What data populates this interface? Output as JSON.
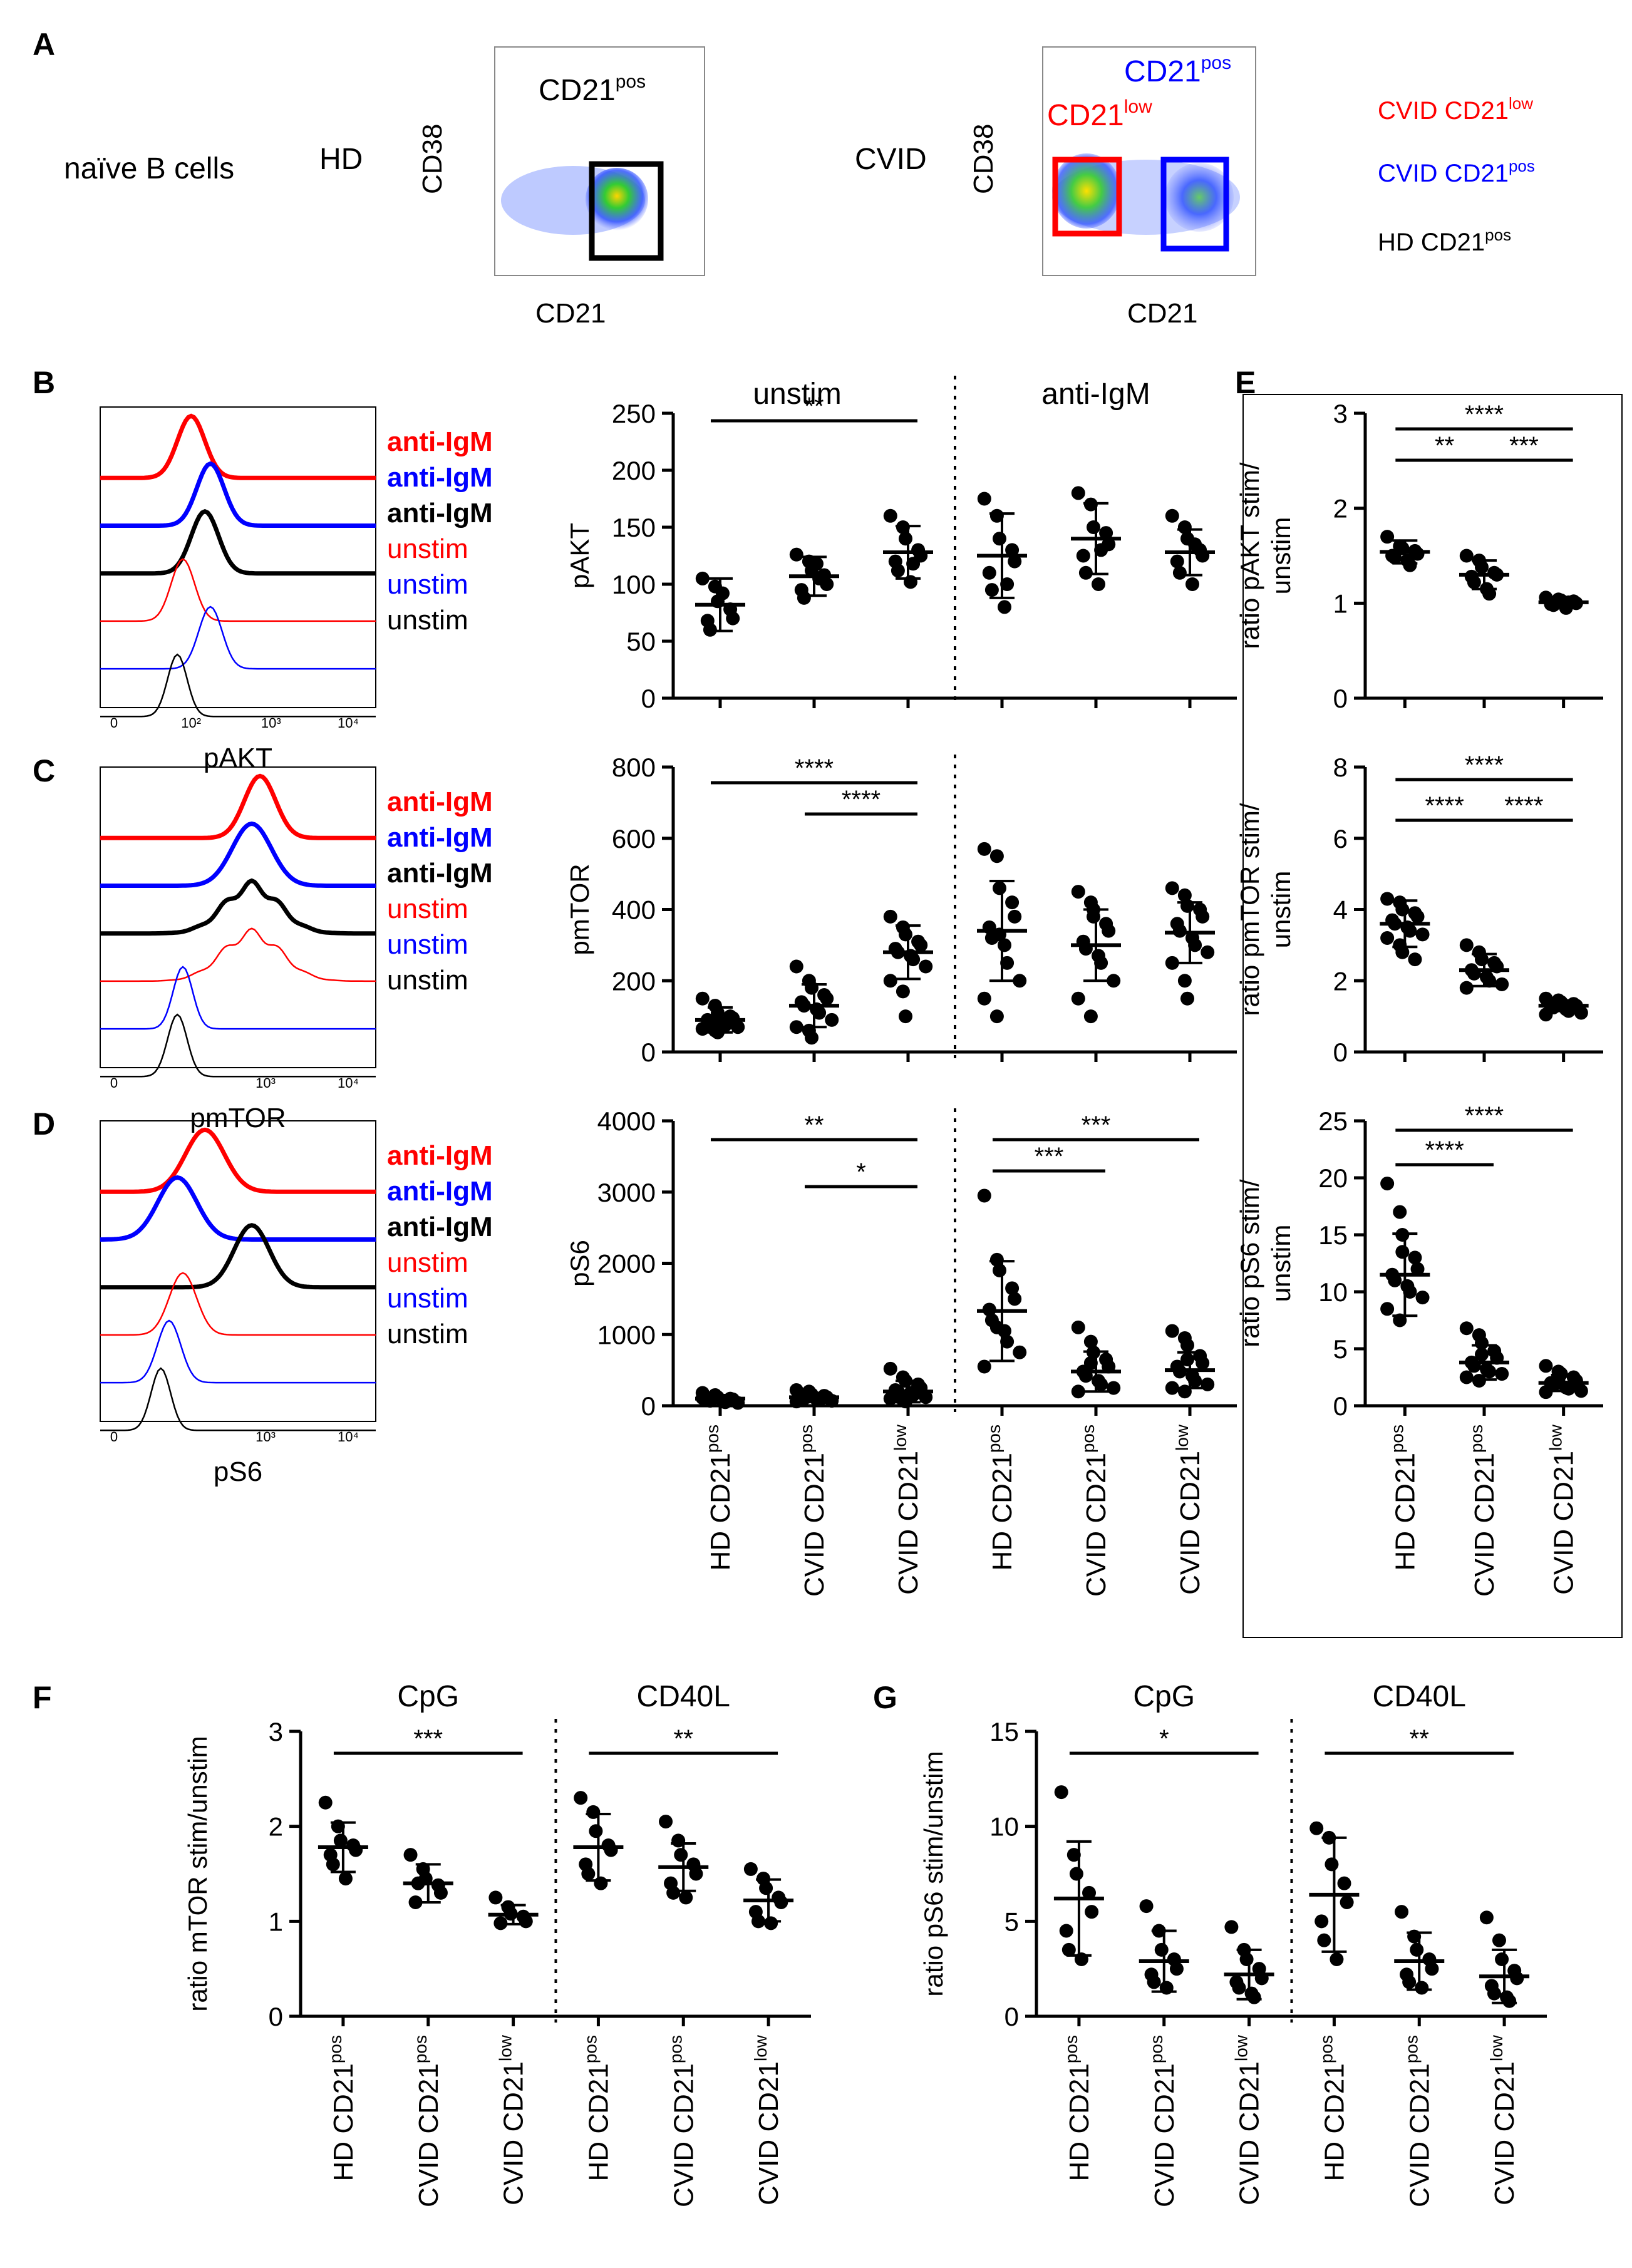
{
  "colors": {
    "red": "#ff0000",
    "blue": "#0000ff",
    "black": "#000000"
  },
  "panel_letters": [
    "A",
    "B",
    "C",
    "D",
    "E",
    "F",
    "G"
  ],
  "panel_a": {
    "row_label": "naïve B cells",
    "hd_label": "HD",
    "cvid_label": "CVID",
    "hd_gate": "CD21",
    "hd_gate_sup": "pos",
    "cvid_gate_low": "CD21",
    "cvid_gate_low_sup": "low",
    "cvid_gate_pos": "CD21",
    "cvid_gate_pos_sup": "pos",
    "x_axis": "CD21",
    "y_axis": "CD38",
    "legend": [
      {
        "base": "CVID CD21",
        "sup": "low",
        "color": "red"
      },
      {
        "base": "CVID CD21",
        "sup": "pos",
        "color": "blue"
      },
      {
        "base": "HD CD21",
        "sup": "pos",
        "color": "black"
      }
    ]
  },
  "histogram_labels": [
    {
      "text": "anti-IgM",
      "color": "red",
      "bold": true
    },
    {
      "text": "anti-IgM",
      "color": "blue",
      "bold": true
    },
    {
      "text": "anti-IgM",
      "color": "black",
      "bold": true
    },
    {
      "text": "unstim",
      "color": "red",
      "bold": false
    },
    {
      "text": "unstim",
      "color": "blue",
      "bold": false
    },
    {
      "text": "unstim",
      "color": "black",
      "bold": false
    }
  ],
  "histograms": [
    {
      "panel": "B",
      "xlabel": "pAKT",
      "ticks": [
        "0",
        "10²",
        "10³",
        "10⁴"
      ]
    },
    {
      "panel": "C",
      "xlabel": "pmTOR",
      "ticks": [
        "0",
        "10³",
        "10⁴"
      ]
    },
    {
      "panel": "D",
      "xlabel": "pS6",
      "ticks": [
        "0",
        "10³",
        "10⁴"
      ]
    }
  ],
  "group_headers": {
    "left": "unstim",
    "right": "anti-IgM"
  },
  "category_labels": [
    {
      "base": "HD CD21",
      "sup": "pos"
    },
    {
      "base": "CVID CD21",
      "sup": "pos"
    },
    {
      "base": "CVID CD21",
      "sup": "low"
    }
  ],
  "stim_labels": {
    "cpg": "CpG",
    "cd40l": "CD40L"
  },
  "chart_data": [
    {
      "panel": "B",
      "type": "scatter",
      "ylabel": "pAKT",
      "ylim": [
        0,
        250
      ],
      "yticks": [
        0,
        50,
        100,
        150,
        200,
        250
      ],
      "categories": [
        "HD CD21pos unstim",
        "CVID CD21pos unstim",
        "CVID CD21low unstim",
        "HD CD21pos anti-IgM",
        "CVID CD21pos anti-IgM",
        "CVID CD21low anti-IgM"
      ],
      "series": [
        {
          "name": "HD CD21pos unstim",
          "mean": 82,
          "sd": 23,
          "points": [
            105,
            98,
            85,
            78,
            70,
            68,
            60,
            92
          ]
        },
        {
          "name": "CVID CD21pos unstim",
          "mean": 107,
          "sd": 17,
          "points": [
            126,
            120,
            112,
            108,
            100,
            95,
            88,
            118,
            105
          ]
        },
        {
          "name": "CVID CD21low unstim",
          "mean": 128,
          "sd": 23,
          "points": [
            160,
            150,
            140,
            130,
            125,
            120,
            112,
            102,
            118
          ]
        },
        {
          "name": "HD CD21pos anti-IgM",
          "mean": 125,
          "sd": 37,
          "points": [
            175,
            160,
            140,
            130,
            120,
            110,
            95,
            80,
            100
          ]
        },
        {
          "name": "CVID CD21pos anti-IgM",
          "mean": 140,
          "sd": 31,
          "points": [
            180,
            170,
            150,
            145,
            135,
            125,
            110,
            100,
            130
          ]
        },
        {
          "name": "CVID CD21low anti-IgM",
          "mean": 128,
          "sd": 20,
          "points": [
            160,
            150,
            140,
            130,
            125,
            120,
            110,
            100,
            135
          ]
        }
      ],
      "significance": [
        {
          "from": 0,
          "to": 2,
          "label": "**"
        }
      ]
    },
    {
      "panel": "C",
      "type": "scatter",
      "ylabel": "pmTOR",
      "ylim": [
        0,
        800
      ],
      "yticks": [
        0,
        200,
        400,
        600,
        800
      ],
      "categories": [
        "HD CD21pos unstim",
        "CVID CD21pos unstim",
        "CVID CD21low unstim",
        "HD CD21pos anti-IgM",
        "CVID CD21pos anti-IgM",
        "CVID CD21low anti-IgM"
      ],
      "series": [
        {
          "name": "HD CD21pos unstim",
          "mean": 90,
          "sd": 35,
          "points": [
            150,
            130,
            110,
            100,
            95,
            90,
            85,
            80,
            75,
            70,
            65,
            60,
            55,
            100
          ]
        },
        {
          "name": "CVID CD21pos unstim",
          "mean": 130,
          "sd": 60,
          "points": [
            240,
            200,
            180,
            160,
            150,
            140,
            130,
            120,
            110,
            90,
            70,
            60,
            40
          ]
        },
        {
          "name": "CVID CD21low unstim",
          "mean": 280,
          "sd": 75,
          "points": [
            380,
            350,
            330,
            310,
            300,
            290,
            280,
            270,
            260,
            240,
            200,
            170,
            100
          ]
        },
        {
          "name": "HD CD21pos anti-IgM",
          "mean": 340,
          "sd": 140,
          "points": [
            570,
            550,
            460,
            420,
            380,
            350,
            320,
            300,
            250,
            200,
            150,
            100,
            330
          ]
        },
        {
          "name": "CVID CD21pos anti-IgM",
          "mean": 300,
          "sd": 100,
          "points": [
            450,
            420,
            400,
            360,
            340,
            310,
            290,
            270,
            250,
            200,
            150,
            100,
            380
          ]
        },
        {
          "name": "CVID CD21low anti-IgM",
          "mean": 335,
          "sd": 85,
          "points": [
            460,
            440,
            410,
            400,
            380,
            360,
            340,
            320,
            300,
            280,
            250,
            200,
            150
          ]
        }
      ],
      "significance": [
        {
          "from": 0,
          "to": 2,
          "label": "****"
        },
        {
          "from": 1,
          "to": 2,
          "label": "****"
        }
      ]
    },
    {
      "panel": "D",
      "type": "scatter",
      "ylabel": "pS6",
      "ylim": [
        0,
        4000
      ],
      "yticks": [
        0,
        1000,
        2000,
        3000,
        4000
      ],
      "categories": [
        "HD CD21pos unstim",
        "CVID CD21pos unstim",
        "CVID CD21low unstim",
        "HD CD21pos anti-IgM",
        "CVID CD21pos anti-IgM",
        "CVID CD21low anti-IgM"
      ],
      "series": [
        {
          "name": "HD CD21pos unstim",
          "mean": 100,
          "sd": 50,
          "points": [
            180,
            150,
            120,
            100,
            90,
            80,
            70,
            60,
            50,
            40,
            110
          ]
        },
        {
          "name": "CVID CD21pos unstim",
          "mean": 120,
          "sd": 60,
          "points": [
            220,
            200,
            160,
            140,
            120,
            110,
            100,
            90,
            80,
            70,
            60,
            130
          ]
        },
        {
          "name": "CVID CD21low unstim",
          "mean": 200,
          "sd": 150,
          "points": [
            520,
            400,
            350,
            300,
            250,
            220,
            200,
            180,
            150,
            120,
            100,
            80,
            60,
            280
          ]
        },
        {
          "name": "HD CD21pos anti-IgM",
          "mean": 1330,
          "sd": 700,
          "points": [
            2950,
            2050,
            1900,
            1650,
            1500,
            1350,
            1200,
            1050,
            900,
            750,
            550,
            1100
          ]
        },
        {
          "name": "CVID CD21pos anti-IgM",
          "mean": 480,
          "sd": 280,
          "points": [
            1100,
            900,
            750,
            650,
            550,
            480,
            420,
            350,
            300,
            250,
            200,
            600
          ]
        },
        {
          "name": "CVID CD21low anti-IgM",
          "mean": 500,
          "sd": 250,
          "points": [
            1050,
            950,
            850,
            700,
            600,
            550,
            480,
            420,
            350,
            300,
            250,
            200,
            650
          ]
        }
      ],
      "significance": [
        {
          "from": 0,
          "to": 2,
          "label": "**"
        },
        {
          "from": 1,
          "to": 2,
          "label": "*"
        },
        {
          "from": 3,
          "to": 5,
          "label": "***"
        },
        {
          "from": 3,
          "to": 4,
          "label": "***"
        }
      ]
    },
    {
      "panel": "E1",
      "type": "scatter",
      "ylabel": "ratio pAKT stim/ unstim",
      "ylim": [
        0,
        3
      ],
      "yticks": [
        0,
        1,
        2,
        3
      ],
      "categories": [
        "HD CD21pos",
        "CVID CD21pos",
        "CVID CD21low"
      ],
      "series": [
        {
          "name": "HD CD21pos",
          "mean": 1.54,
          "sd": 0.12,
          "points": [
            1.7,
            1.6,
            1.58,
            1.55,
            1.52,
            1.5,
            1.48,
            1.45,
            1.4
          ]
        },
        {
          "name": "CVID CD21pos",
          "mean": 1.3,
          "sd": 0.15,
          "points": [
            1.5,
            1.45,
            1.38,
            1.32,
            1.3,
            1.28,
            1.22,
            1.15,
            1.1
          ]
        },
        {
          "name": "CVID CD21low",
          "mean": 1.01,
          "sd": 0.04,
          "points": [
            1.06,
            1.04,
            1.03,
            1.02,
            1.0,
            0.99,
            0.98,
            0.95,
            1.01
          ]
        }
      ],
      "significance": [
        {
          "from": 0,
          "to": 2,
          "label": "****"
        },
        {
          "from": 0,
          "to": 1,
          "label": "**"
        },
        {
          "from": 1,
          "to": 2,
          "label": "***"
        }
      ]
    },
    {
      "panel": "E2",
      "type": "scatter",
      "ylabel": "ratio pmTOR stim/ unstim",
      "ylim": [
        0,
        8
      ],
      "yticks": [
        0,
        2,
        4,
        6,
        8
      ],
      "categories": [
        "HD CD21pos",
        "CVID CD21pos",
        "CVID CD21low"
      ],
      "series": [
        {
          "name": "HD CD21pos",
          "mean": 3.6,
          "sd": 0.65,
          "points": [
            4.3,
            4.2,
            4.0,
            3.9,
            3.8,
            3.7,
            3.6,
            3.5,
            3.4,
            3.3,
            3.2,
            3.0,
            2.8,
            2.6
          ]
        },
        {
          "name": "CVID CD21pos",
          "mean": 2.3,
          "sd": 0.45,
          "points": [
            3.0,
            2.8,
            2.6,
            2.5,
            2.4,
            2.3,
            2.2,
            2.1,
            2.0,
            1.9,
            1.8
          ]
        },
        {
          "name": "CVID CD21low",
          "mean": 1.3,
          "sd": 0.15,
          "points": [
            1.5,
            1.45,
            1.4,
            1.35,
            1.3,
            1.28,
            1.25,
            1.2,
            1.15,
            1.1,
            1.05
          ]
        }
      ],
      "significance": [
        {
          "from": 0,
          "to": 2,
          "label": "****"
        },
        {
          "from": 0,
          "to": 1,
          "label": "****"
        },
        {
          "from": 1,
          "to": 2,
          "label": "****"
        }
      ]
    },
    {
      "panel": "E3",
      "type": "scatter",
      "ylabel": "ratio pS6 stim/ unstim",
      "ylim": [
        0,
        25
      ],
      "yticks": [
        0,
        5,
        10,
        15,
        20,
        25
      ],
      "categories": [
        "HD CD21pos",
        "CVID CD21pos",
        "CVID CD21low"
      ],
      "series": [
        {
          "name": "HD CD21pos",
          "mean": 11.5,
          "sd": 3.6,
          "points": [
            19.5,
            17,
            15,
            13,
            12,
            11.5,
            11,
            10.5,
            10,
            9.5,
            8.5,
            7.5,
            13.5
          ]
        },
        {
          "name": "CVID CD21pos",
          "mean": 3.8,
          "sd": 1.5,
          "points": [
            6.8,
            6.2,
            5.5,
            4.8,
            4.2,
            3.8,
            3.5,
            3.2,
            3.0,
            2.8,
            2.5,
            2.2,
            4.5
          ]
        },
        {
          "name": "CVID CD21low",
          "mean": 2.0,
          "sd": 0.7,
          "points": [
            3.5,
            3.0,
            2.8,
            2.5,
            2.2,
            2.0,
            1.8,
            1.6,
            1.5,
            1.3,
            1.2,
            2.3
          ]
        }
      ],
      "significance": [
        {
          "from": 0,
          "to": 2,
          "label": "****"
        },
        {
          "from": 0,
          "to": 1,
          "label": "****"
        }
      ]
    },
    {
      "panel": "F",
      "type": "scatter",
      "ylabel": "ratio mTOR stim/unstim",
      "ylim": [
        0,
        3
      ],
      "yticks": [
        0,
        1,
        2,
        3
      ],
      "categories": [
        "HD CD21pos CpG",
        "CVID CD21pos CpG",
        "CVID CD21low CpG",
        "HD CD21pos CD40L",
        "CVID CD21pos CD40L",
        "CVID CD21low CD40L"
      ],
      "series": [
        {
          "name": "HD CD21pos CpG",
          "mean": 1.78,
          "sd": 0.26,
          "points": [
            2.25,
            2.0,
            1.85,
            1.8,
            1.75,
            1.7,
            1.6,
            1.45
          ]
        },
        {
          "name": "CVID CD21pos CpG",
          "mean": 1.4,
          "sd": 0.2,
          "points": [
            1.7,
            1.55,
            1.45,
            1.38,
            1.3,
            1.2,
            1.4
          ]
        },
        {
          "name": "CVID CD21low CpG",
          "mean": 1.07,
          "sd": 0.1,
          "points": [
            1.25,
            1.15,
            1.08,
            1.05,
            1.0,
            0.98
          ]
        },
        {
          "name": "HD CD21pos CD40L",
          "mean": 1.78,
          "sd": 0.35,
          "points": [
            2.3,
            2.15,
            1.95,
            1.8,
            1.75,
            1.6,
            1.5,
            1.4
          ]
        },
        {
          "name": "CVID CD21pos CD40L",
          "mean": 1.57,
          "sd": 0.25,
          "points": [
            2.05,
            1.85,
            1.7,
            1.6,
            1.5,
            1.4,
            1.3,
            1.25
          ]
        },
        {
          "name": "CVID CD21low CD40L",
          "mean": 1.22,
          "sd": 0.22,
          "points": [
            1.55,
            1.45,
            1.35,
            1.25,
            1.2,
            1.1,
            1.0,
            0.98
          ]
        }
      ],
      "significance": [
        {
          "from": 0,
          "to": 2,
          "label": "***"
        },
        {
          "from": 3,
          "to": 5,
          "label": "**"
        }
      ]
    },
    {
      "panel": "G",
      "type": "scatter",
      "ylabel": "ratio pS6 stim/unstim",
      "ylim": [
        0,
        15
      ],
      "yticks": [
        0,
        5,
        10,
        15
      ],
      "categories": [
        "HD CD21pos CpG",
        "CVID CD21pos CpG",
        "CVID CD21low CpG",
        "HD CD21pos CD40L",
        "CVID CD21pos CD40L",
        "CVID CD21low CD40L"
      ],
      "series": [
        {
          "name": "HD CD21pos CpG",
          "mean": 6.2,
          "sd": 3.0,
          "points": [
            11.8,
            8.5,
            7.5,
            6.5,
            5.5,
            4.5,
            3.5,
            3.0
          ]
        },
        {
          "name": "CVID CD21pos CpG",
          "mean": 2.9,
          "sd": 1.6,
          "points": [
            5.8,
            4.5,
            3.5,
            3.0,
            2.5,
            2.2,
            1.8,
            1.5
          ]
        },
        {
          "name": "CVID CD21low CpG",
          "mean": 2.2,
          "sd": 1.3,
          "points": [
            4.7,
            3.5,
            3.0,
            2.5,
            2.0,
            1.8,
            1.5,
            1.2,
            1.0
          ]
        },
        {
          "name": "HD CD21pos CD40L",
          "mean": 6.4,
          "sd": 3.0,
          "points": [
            9.9,
            9.4,
            8.0,
            7.0,
            6.0,
            5.0,
            4.0,
            3.0
          ]
        },
        {
          "name": "CVID CD21pos CD40L",
          "mean": 2.9,
          "sd": 1.5,
          "points": [
            5.5,
            4.2,
            3.5,
            3.0,
            2.5,
            2.2,
            1.8,
            1.5
          ]
        },
        {
          "name": "CVID CD21low CD40L",
          "mean": 2.1,
          "sd": 1.4,
          "points": [
            5.2,
            4.0,
            3.0,
            2.4,
            2.0,
            1.6,
            1.2,
            1.0,
            0.8
          ]
        }
      ],
      "significance": [
        {
          "from": 0,
          "to": 2,
          "label": "*"
        },
        {
          "from": 3,
          "to": 5,
          "label": "**"
        }
      ]
    }
  ]
}
